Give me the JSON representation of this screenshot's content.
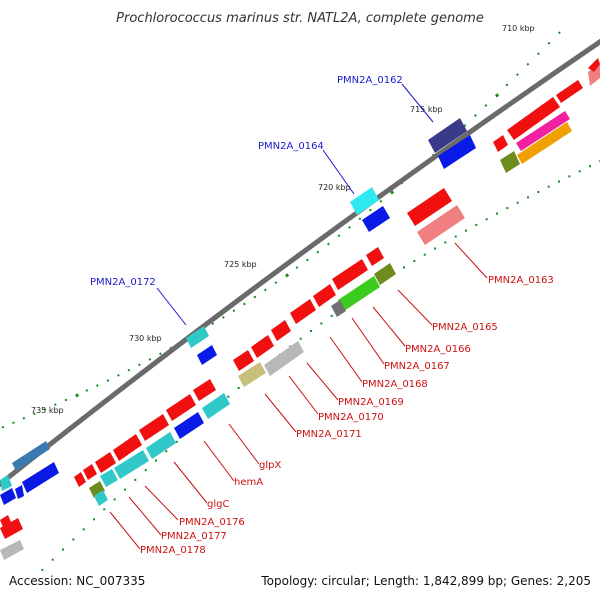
{
  "title": "Prochlorococcus marinus str. NATL2A, complete genome",
  "footer": {
    "accession": "Accession: NC_007335",
    "summary": "Topology: circular; Length: 1,842,899 bp; Genes: 2,205"
  },
  "ticks": [
    "710 kbp",
    "715 kbp",
    "720 kbp",
    "725 kbp",
    "730 kbp",
    "735 kbp"
  ],
  "genes_forward": [
    "PMN2A_0162",
    "PMN2A_0164",
    "PMN2A_0172"
  ],
  "genes_reverse": [
    "PMN2A_0163",
    "PMN2A_0165",
    "PMN2A_0166",
    "PMN2A_0167",
    "PMN2A_0168",
    "PMN2A_0169",
    "PMN2A_0170",
    "PMN2A_0171",
    "glpX",
    "hemA",
    "glgC",
    "PMN2A_0176",
    "PMN2A_0177",
    "PMN2A_0178"
  ],
  "colors": {
    "forward_label": "#1a1acc",
    "reverse_label": "#cc1111",
    "backbone": "#808080",
    "red": "#f01010",
    "pink": "#f08080",
    "blue": "#0a1ae6",
    "navy": "#3a3a8a",
    "cyan": "#30c8c8",
    "green": "#3ccc1e",
    "olive": "#6e8c1e",
    "khaki": "#c8c07a",
    "grey": "#b0b0b0",
    "magenta": "#f020a0",
    "orange": "#f0a000",
    "tick_green": "#1a8c1a"
  }
}
